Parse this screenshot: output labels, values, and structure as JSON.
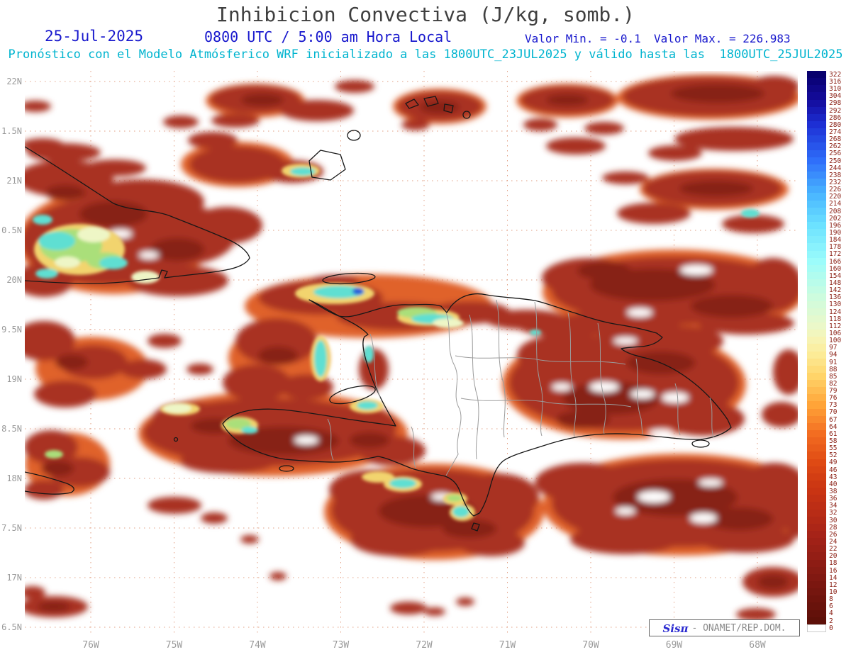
{
  "header": {
    "title": "Inhibicion Convectiva (J/kg, somb.)",
    "date": "25-Jul-2025",
    "time": "0800 UTC / 5:00 am Hora Local",
    "valor_min": "Valor Min. = -0.1",
    "valor_max": "Valor Max. = 226.983",
    "model_line": "Pronóstico con el Modelo Atmósferico WRF inicializado a las 1800UTC_23JUL2025 y válido hasta las  1800UTC_25JUL2025"
  },
  "axes": {
    "lat_labels": [
      "22N",
      "1.5N",
      "21N",
      "0.5N",
      "20N",
      "9.5N",
      "19N",
      "8.5N",
      "18N",
      "7.5N",
      "17N",
      "6.5N"
    ],
    "lon_labels": [
      "76W",
      "75W",
      "74W",
      "73W",
      "72W",
      "71W",
      "70W",
      "69W",
      "68W"
    ]
  },
  "colorbar": {
    "label_color": "#8b2015",
    "levels": [
      322,
      316,
      310,
      304,
      298,
      292,
      286,
      280,
      274,
      268,
      262,
      256,
      250,
      244,
      238,
      232,
      226,
      220,
      214,
      208,
      202,
      196,
      190,
      184,
      178,
      172,
      166,
      160,
      154,
      148,
      142,
      136,
      130,
      124,
      118,
      112,
      106,
      100,
      97,
      94,
      91,
      88,
      85,
      82,
      79,
      76,
      73,
      70,
      67,
      64,
      61,
      58,
      55,
      52,
      49,
      46,
      43,
      40,
      38,
      36,
      34,
      32,
      30,
      28,
      26,
      24,
      22,
      20,
      18,
      16,
      14,
      12,
      10,
      8,
      6,
      4,
      2,
      0
    ],
    "stops": [
      {
        "v": 322,
        "c": "#08006e"
      },
      {
        "v": 300,
        "c": "#140c9e"
      },
      {
        "v": 280,
        "c": "#1d2fd4"
      },
      {
        "v": 250,
        "c": "#2f6ffa"
      },
      {
        "v": 222,
        "c": "#49b6ff"
      },
      {
        "v": 196,
        "c": "#6ce2ff"
      },
      {
        "v": 166,
        "c": "#9cfcfb"
      },
      {
        "v": 136,
        "c": "#cdfcde"
      },
      {
        "v": 112,
        "c": "#ebf8c9"
      },
      {
        "v": 100,
        "c": "#f7f3b2"
      },
      {
        "v": 94,
        "c": "#fceb96"
      },
      {
        "v": 85,
        "c": "#ffd469"
      },
      {
        "v": 73,
        "c": "#ffa438"
      },
      {
        "v": 61,
        "c": "#f36d21"
      },
      {
        "v": 49,
        "c": "#df4a14"
      },
      {
        "v": 38,
        "c": "#c93413"
      },
      {
        "v": 26,
        "c": "#a62318"
      },
      {
        "v": 14,
        "c": "#811912"
      },
      {
        "v": 4,
        "c": "#63110a"
      },
      {
        "v": 2,
        "c": "#5d1008"
      },
      {
        "v": 0,
        "c": "#ffffff"
      }
    ]
  },
  "attribution": {
    "brand_prefix": "Sis",
    "brand_symbol": "π",
    "org_text": "- ONAMET/REP.DOM."
  },
  "chart_data": {
    "type": "heatmap",
    "title": "Inhibicion Convectiva (J/kg, somb.)",
    "units": "J/kg",
    "value_min": -0.1,
    "value_max": 226.983,
    "model": "WRF",
    "init_time": "1800UTC_23JUL2025",
    "valid_until": "1800UTC_25JUL2025",
    "forecast_date": "25-Jul-2025",
    "forecast_time_utc": "0800 UTC",
    "forecast_time_local": "5:00 am Hora Local",
    "x_ticks": [
      "76W",
      "75W",
      "74W",
      "73W",
      "72W",
      "71W",
      "70W",
      "69W",
      "68W"
    ],
    "y_ticks": [
      "22N",
      "1.5N",
      "21N",
      "0.5N",
      "20N",
      "9.5N",
      "19N",
      "8.5N",
      "18N",
      "7.5N",
      "17N",
      "6.5N"
    ],
    "colorbar_levels": [
      322,
      316,
      310,
      304,
      298,
      292,
      286,
      280,
      274,
      268,
      262,
      256,
      250,
      244,
      238,
      232,
      226,
      220,
      214,
      208,
      202,
      196,
      190,
      184,
      178,
      172,
      166,
      160,
      154,
      148,
      142,
      136,
      130,
      124,
      118,
      112,
      106,
      100,
      97,
      94,
      91,
      88,
      85,
      82,
      79,
      76,
      73,
      70,
      67,
      64,
      61,
      58,
      55,
      52,
      49,
      46,
      43,
      40,
      38,
      36,
      34,
      32,
      30,
      28,
      26,
      24,
      22,
      20,
      18,
      16,
      14,
      12,
      10,
      8,
      6,
      4,
      2,
      0
    ],
    "legend_position": "right",
    "grid": true,
    "shading_note": "Shaded convective inhibition field over Hispaniola, eastern Cuba, Jamaica tip, Bahamas and surrounding ocean; dominant dark-red areas are low values (2-40 J/kg), orange/yellow fringes 50-100, scattered cyan-green cores 100-170, one small blue spot >200 near the north coast; white areas are 0."
  }
}
